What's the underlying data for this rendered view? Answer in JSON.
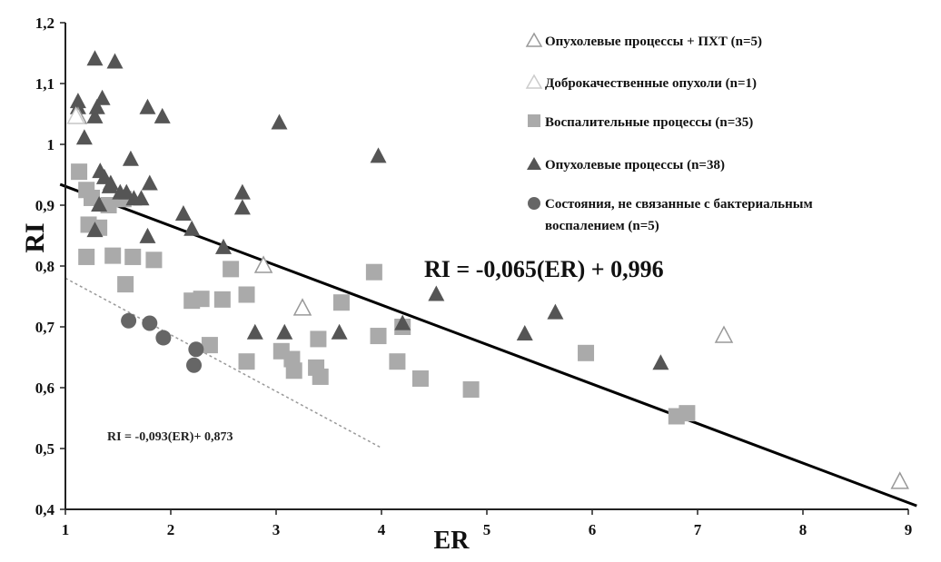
{
  "chart_data": {
    "type": "scatter",
    "xlabel": "ER",
    "ylabel": "RI",
    "xlim": [
      1,
      9
    ],
    "ylim": [
      0.4,
      1.2
    ],
    "x_ticks": [
      "1",
      "2",
      "3",
      "4",
      "5",
      "6",
      "7",
      "8",
      "9"
    ],
    "y_ticks": [
      "0,4",
      "0,5",
      "0,6",
      "0,7",
      "0,8",
      "0,9",
      "1",
      "1,1",
      "1,2"
    ],
    "grid": false,
    "legend_position": "top-right",
    "colors": {
      "tumor": "#555555",
      "inflammatory": "#aaaaaa",
      "tumor_pxt": "#999999",
      "benign": "#cccccc",
      "non_bacterial": "#666666",
      "trendline": "#000000",
      "dotted_trendline": "#999999"
    },
    "series": [
      {
        "name": "Опухолевые процессы + ПХТ (n=5)",
        "marker": "triangle-open",
        "color_key": "tumor_pxt",
        "points": [
          [
            1.12,
            1.045
          ],
          [
            2.88,
            0.8
          ],
          [
            3.25,
            0.73
          ],
          [
            7.25,
            0.685
          ],
          [
            8.92,
            0.445
          ]
        ]
      },
      {
        "name": "Доброкачественные опухоли (n=1)",
        "marker": "triangle-open-light",
        "color_key": "benign",
        "points": [
          [
            1.1,
            1.045
          ]
        ]
      },
      {
        "name": "Воспалительные процессы (n=35)",
        "marker": "square",
        "color_key": "inflammatory",
        "points": [
          [
            1.13,
            0.955
          ],
          [
            1.2,
            0.925
          ],
          [
            1.25,
            0.912
          ],
          [
            1.22,
            0.868
          ],
          [
            1.32,
            0.863
          ],
          [
            1.2,
            0.815
          ],
          [
            1.45,
            0.817
          ],
          [
            1.64,
            0.815
          ],
          [
            1.57,
            0.77
          ],
          [
            1.84,
            0.81
          ],
          [
            2.2,
            0.743
          ],
          [
            2.29,
            0.746
          ],
          [
            2.49,
            0.745
          ],
          [
            2.57,
            0.795
          ],
          [
            2.37,
            0.67
          ],
          [
            2.72,
            0.753
          ],
          [
            2.72,
            0.643
          ],
          [
            3.05,
            0.66
          ],
          [
            3.15,
            0.647
          ],
          [
            3.17,
            0.628
          ],
          [
            3.38,
            0.633
          ],
          [
            3.4,
            0.68
          ],
          [
            3.42,
            0.618
          ],
          [
            3.62,
            0.74
          ],
          [
            3.93,
            0.79
          ],
          [
            3.97,
            0.685
          ],
          [
            4.15,
            0.643
          ],
          [
            4.2,
            0.7
          ],
          [
            4.37,
            0.615
          ],
          [
            4.85,
            0.597
          ],
          [
            5.94,
            0.657
          ],
          [
            6.8,
            0.553
          ],
          [
            6.9,
            0.558
          ],
          [
            1.41,
            0.9
          ],
          [
            1.55,
            0.91
          ]
        ]
      },
      {
        "name": "Опухолевые процессы (n=38)",
        "marker": "triangle",
        "color_key": "tumor",
        "points": [
          [
            1.12,
            1.07
          ],
          [
            1.12,
            1.06
          ],
          [
            1.18,
            1.01
          ],
          [
            1.28,
            1.045
          ],
          [
            1.3,
            1.06
          ],
          [
            1.35,
            1.075
          ],
          [
            1.28,
            1.14
          ],
          [
            1.47,
            1.135
          ],
          [
            1.33,
            0.955
          ],
          [
            1.37,
            0.945
          ],
          [
            1.42,
            0.93
          ],
          [
            1.32,
            0.9
          ],
          [
            1.28,
            0.858
          ],
          [
            1.52,
            0.92
          ],
          [
            1.62,
            0.975
          ],
          [
            1.65,
            0.91
          ],
          [
            1.78,
            1.06
          ],
          [
            1.92,
            1.045
          ],
          [
            1.8,
            0.935
          ],
          [
            1.78,
            0.848
          ],
          [
            2.12,
            0.885
          ],
          [
            2.2,
            0.86
          ],
          [
            2.5,
            0.83
          ],
          [
            2.68,
            0.92
          ],
          [
            2.68,
            0.895
          ],
          [
            2.8,
            0.69
          ],
          [
            3.03,
            1.035
          ],
          [
            3.08,
            0.69
          ],
          [
            3.6,
            0.69
          ],
          [
            3.97,
            0.98
          ],
          [
            4.2,
            0.705
          ],
          [
            4.52,
            0.753
          ],
          [
            5.36,
            0.688
          ],
          [
            5.65,
            0.723
          ],
          [
            6.65,
            0.64
          ],
          [
            1.43,
            0.935
          ],
          [
            1.58,
            0.92
          ],
          [
            1.72,
            0.91
          ]
        ]
      },
      {
        "name": "Состояния, не связанные с бактериальным воспалением (n=5)",
        "legend_lines": [
          "Состояния, не связанные с бактериальным",
          "воспалением (n=5)"
        ],
        "marker": "circle",
        "color_key": "non_bacterial",
        "points": [
          [
            1.6,
            0.71
          ],
          [
            1.8,
            0.706
          ],
          [
            1.93,
            0.682
          ],
          [
            2.24,
            0.663
          ],
          [
            2.22,
            0.637
          ]
        ]
      }
    ],
    "trendlines": [
      {
        "label": "RI = -0,065(ER) + 0,996",
        "slope": -0.065,
        "intercept": 0.996,
        "x_range": [
          0.95,
          9.08
        ],
        "style": "solid"
      },
      {
        "label": "RI = -0,093(ER)+ 0,873",
        "slope": -0.093,
        "intercept": 0.873,
        "x_range": [
          1.0,
          4.0
        ],
        "style": "dotted"
      }
    ]
  }
}
